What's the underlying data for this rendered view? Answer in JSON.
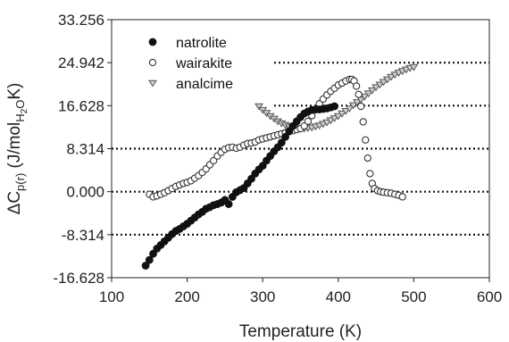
{
  "chart_data": {
    "type": "scatter",
    "title": "",
    "xlabel": "Temperature (K)",
    "ylabel": {
      "prefix": "ΔC",
      "sub1": "p(r)",
      "mid": " (J/mol",
      "sub2": "H",
      "sub3": "2",
      "sub4": "O",
      "suffix": "K)"
    },
    "xlim": [
      100,
      600
    ],
    "ylim": [
      -16.628,
      33.256
    ],
    "xticks": [
      100,
      200,
      300,
      400,
      500,
      600
    ],
    "yticks": [
      "-16.628",
      "-8.314",
      "0.000",
      "8.314",
      "16.628",
      "24.942",
      "33.256"
    ],
    "grid": {
      "horizontal_dotted_at": [
        -8.314,
        0,
        8.314,
        16.628,
        24.942
      ]
    },
    "legend": {
      "position": "top-left"
    },
    "series": [
      {
        "name": "natrolite",
        "marker": "filled-circle",
        "color": "#111111",
        "points": [
          [
            145,
            -14.3
          ],
          [
            150,
            -13.2
          ],
          [
            155,
            -12.0
          ],
          [
            160,
            -11.0
          ],
          [
            165,
            -10.3
          ],
          [
            170,
            -9.6
          ],
          [
            175,
            -8.9
          ],
          [
            180,
            -8.2
          ],
          [
            185,
            -7.6
          ],
          [
            190,
            -7.2
          ],
          [
            195,
            -6.7
          ],
          [
            200,
            -6.2
          ],
          [
            205,
            -5.6
          ],
          [
            210,
            -5.0
          ],
          [
            215,
            -4.4
          ],
          [
            220,
            -3.9
          ],
          [
            225,
            -3.3
          ],
          [
            230,
            -3.0
          ],
          [
            235,
            -2.6
          ],
          [
            240,
            -2.4
          ],
          [
            245,
            -2.1
          ],
          [
            250,
            -1.6
          ],
          [
            255,
            -2.4
          ],
          [
            260,
            -1.0
          ],
          [
            265,
            -0.1
          ],
          [
            270,
            0.3
          ],
          [
            275,
            0.7
          ],
          [
            280,
            1.6
          ],
          [
            285,
            2.5
          ],
          [
            290,
            3.5
          ],
          [
            295,
            4.3
          ],
          [
            300,
            5.0
          ],
          [
            305,
            6.0
          ],
          [
            310,
            6.9
          ],
          [
            315,
            7.8
          ],
          [
            320,
            8.6
          ],
          [
            325,
            9.5
          ],
          [
            330,
            10.6
          ],
          [
            335,
            11.7
          ],
          [
            340,
            12.7
          ],
          [
            345,
            13.6
          ],
          [
            350,
            14.4
          ],
          [
            355,
            15.1
          ],
          [
            360,
            15.5
          ],
          [
            365,
            15.8
          ],
          [
            370,
            15.9
          ],
          [
            375,
            15.9
          ],
          [
            380,
            16.0
          ],
          [
            385,
            16.1
          ],
          [
            390,
            16.3
          ],
          [
            395,
            16.5
          ]
        ]
      },
      {
        "name": "wairakite",
        "marker": "open-circle",
        "color": "#333333",
        "points": [
          [
            150,
            -0.5
          ],
          [
            155,
            -1.0
          ],
          [
            160,
            -0.8
          ],
          [
            165,
            -0.5
          ],
          [
            170,
            -0.2
          ],
          [
            175,
            0.2
          ],
          [
            180,
            0.6
          ],
          [
            185,
            1.0
          ],
          [
            190,
            1.3
          ],
          [
            195,
            1.6
          ],
          [
            200,
            1.8
          ],
          [
            205,
            2.1
          ],
          [
            210,
            2.6
          ],
          [
            215,
            3.1
          ],
          [
            220,
            3.7
          ],
          [
            225,
            4.4
          ],
          [
            230,
            5.2
          ],
          [
            235,
            6.0
          ],
          [
            240,
            6.9
          ],
          [
            245,
            7.6
          ],
          [
            250,
            8.2
          ],
          [
            255,
            8.5
          ],
          [
            260,
            8.6
          ],
          [
            265,
            8.4
          ],
          [
            270,
            8.6
          ],
          [
            275,
            9.0
          ],
          [
            280,
            9.3
          ],
          [
            285,
            9.4
          ],
          [
            290,
            9.6
          ],
          [
            295,
            10.0
          ],
          [
            300,
            10.2
          ],
          [
            305,
            10.4
          ],
          [
            310,
            10.6
          ],
          [
            315,
            10.8
          ],
          [
            320,
            11.0
          ],
          [
            325,
            11.2
          ],
          [
            330,
            11.4
          ],
          [
            335,
            11.6
          ],
          [
            340,
            11.8
          ],
          [
            345,
            12.0
          ],
          [
            350,
            12.2
          ],
          [
            355,
            12.7
          ],
          [
            360,
            13.6
          ],
          [
            365,
            14.7
          ],
          [
            370,
            15.9
          ],
          [
            375,
            17.0
          ],
          [
            380,
            17.9
          ],
          [
            385,
            18.7
          ],
          [
            390,
            19.4
          ],
          [
            395,
            20.0
          ],
          [
            400,
            20.6
          ],
          [
            405,
            21.0
          ],
          [
            410,
            21.4
          ],
          [
            415,
            21.7
          ],
          [
            418,
            21.7
          ],
          [
            421,
            21.4
          ],
          [
            424,
            20.4
          ],
          [
            427,
            18.8
          ],
          [
            430,
            16.5
          ],
          [
            433,
            13.5
          ],
          [
            436,
            10.0
          ],
          [
            439,
            6.5
          ],
          [
            442,
            3.5
          ],
          [
            445,
            1.6
          ],
          [
            448,
            0.6
          ],
          [
            452,
            0.2
          ],
          [
            456,
            0.0
          ],
          [
            460,
            -0.1
          ],
          [
            465,
            -0.2
          ],
          [
            470,
            -0.3
          ],
          [
            475,
            -0.5
          ],
          [
            480,
            -0.7
          ],
          [
            485,
            -1.0
          ]
        ]
      },
      {
        "name": "analcime",
        "marker": "open-triangle-down",
        "color": "#555555",
        "points": [
          [
            295,
            16.5
          ],
          [
            300,
            15.8
          ],
          [
            305,
            15.2
          ],
          [
            310,
            14.6
          ],
          [
            315,
            14.1
          ],
          [
            320,
            13.6
          ],
          [
            325,
            13.2
          ],
          [
            330,
            12.9
          ],
          [
            335,
            12.6
          ],
          [
            340,
            12.4
          ],
          [
            345,
            12.3
          ],
          [
            350,
            12.2
          ],
          [
            355,
            12.2
          ],
          [
            360,
            12.3
          ],
          [
            365,
            12.4
          ],
          [
            370,
            12.6
          ],
          [
            375,
            12.8
          ],
          [
            380,
            13.1
          ],
          [
            385,
            13.4
          ],
          [
            390,
            13.8
          ],
          [
            395,
            14.2
          ],
          [
            400,
            14.6
          ],
          [
            405,
            15.1
          ],
          [
            410,
            15.6
          ],
          [
            415,
            16.1
          ],
          [
            420,
            16.7
          ],
          [
            425,
            17.3
          ],
          [
            430,
            17.8
          ],
          [
            435,
            18.4
          ],
          [
            440,
            19.0
          ],
          [
            445,
            19.6
          ],
          [
            450,
            20.2
          ],
          [
            455,
            20.7
          ],
          [
            460,
            21.2
          ],
          [
            465,
            21.7
          ],
          [
            470,
            22.2
          ],
          [
            475,
            22.6
          ],
          [
            480,
            23.0
          ],
          [
            485,
            23.3
          ],
          [
            490,
            23.6
          ],
          [
            495,
            23.9
          ],
          [
            500,
            24.1
          ]
        ]
      }
    ]
  }
}
